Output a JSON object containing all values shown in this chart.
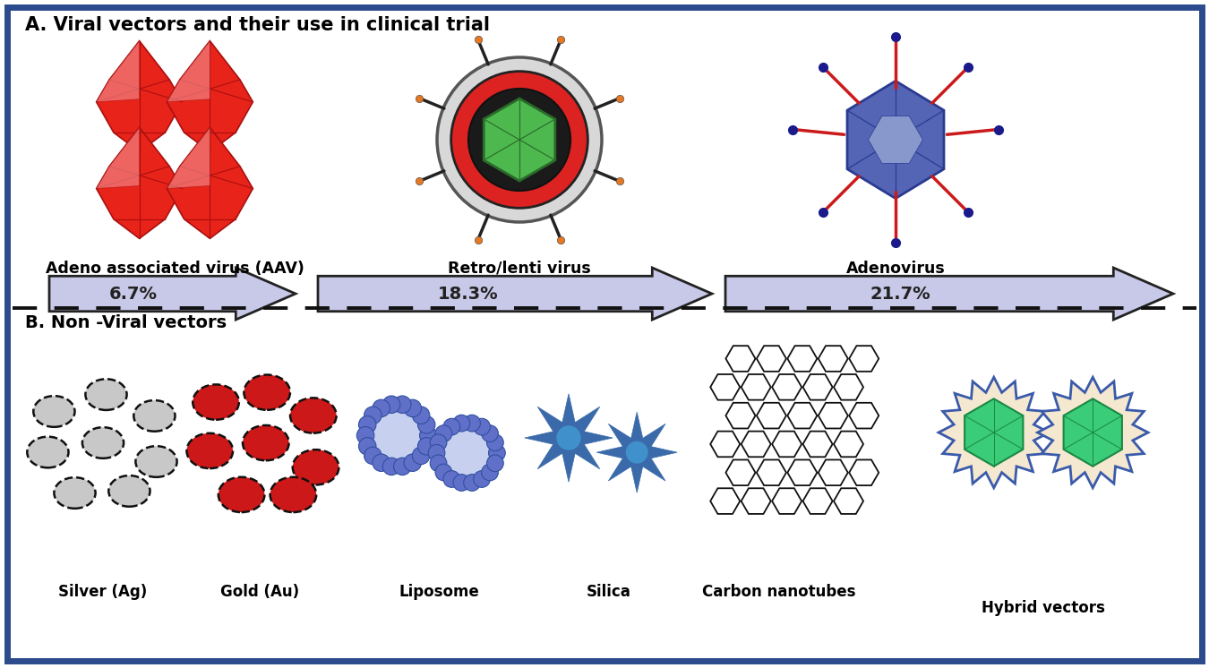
{
  "bg_color": "#ffffff",
  "border_color": "#2b4b8c",
  "border_lw": 4,
  "title_a": "A. Viral vectors and their use in clinical trial",
  "title_b": "B. Non -Viral vectors",
  "label_aav": "Adeno associated virus (AAV)",
  "label_retro": "Retro/lenti virus",
  "label_adeno": "Adenovirus",
  "pct_aav": "6.7%",
  "pct_retro": "18.3%",
  "pct_adeno": "21.7%",
  "label_silver": "Silver (Ag)",
  "label_gold": "Gold (Au)",
  "label_lipo": "Liposome",
  "label_silica": "Silica",
  "label_cnt": "Carbon nanotubes",
  "label_hybrid": "Hybrid vectors",
  "red_virus": "#e8231a",
  "red_mid": "#dd4444",
  "red_light": "#f08080",
  "red_dark": "#aa1010",
  "blue_adeno": "#5565b5",
  "blue_adeno_light": "#8898cc",
  "blue_dark": "#2a3a90",
  "green_core": "#4db84d",
  "green_core_dark": "#2a6a2a",
  "arrow_fill": "#c8c8e8",
  "arrow_fill2": "#d8d8f0",
  "arrow_edge": "#222222",
  "dashed_line_color": "#111111",
  "silver_color": "#c8c8c8",
  "silver_dark": "#888888",
  "gold_color": "#cc1818",
  "lipo_color": "#6070c8",
  "lipo_inner": "#c8d0f0",
  "silica_color": "#3a6aaa",
  "silica_center": "#4090cc",
  "cnt_color": "#111111",
  "hybrid_outer": "#f5e8d0",
  "hybrid_border": "#3a5aaa",
  "hybrid_gem": "#3acc78",
  "hybrid_gem_dark": "#1a8844",
  "retro_gray": "#d8d8d8",
  "retro_red": "#dd2222",
  "retro_dark": "#333333",
  "retro_orange": "#e87820",
  "spike_blue": "#1a1a8c"
}
